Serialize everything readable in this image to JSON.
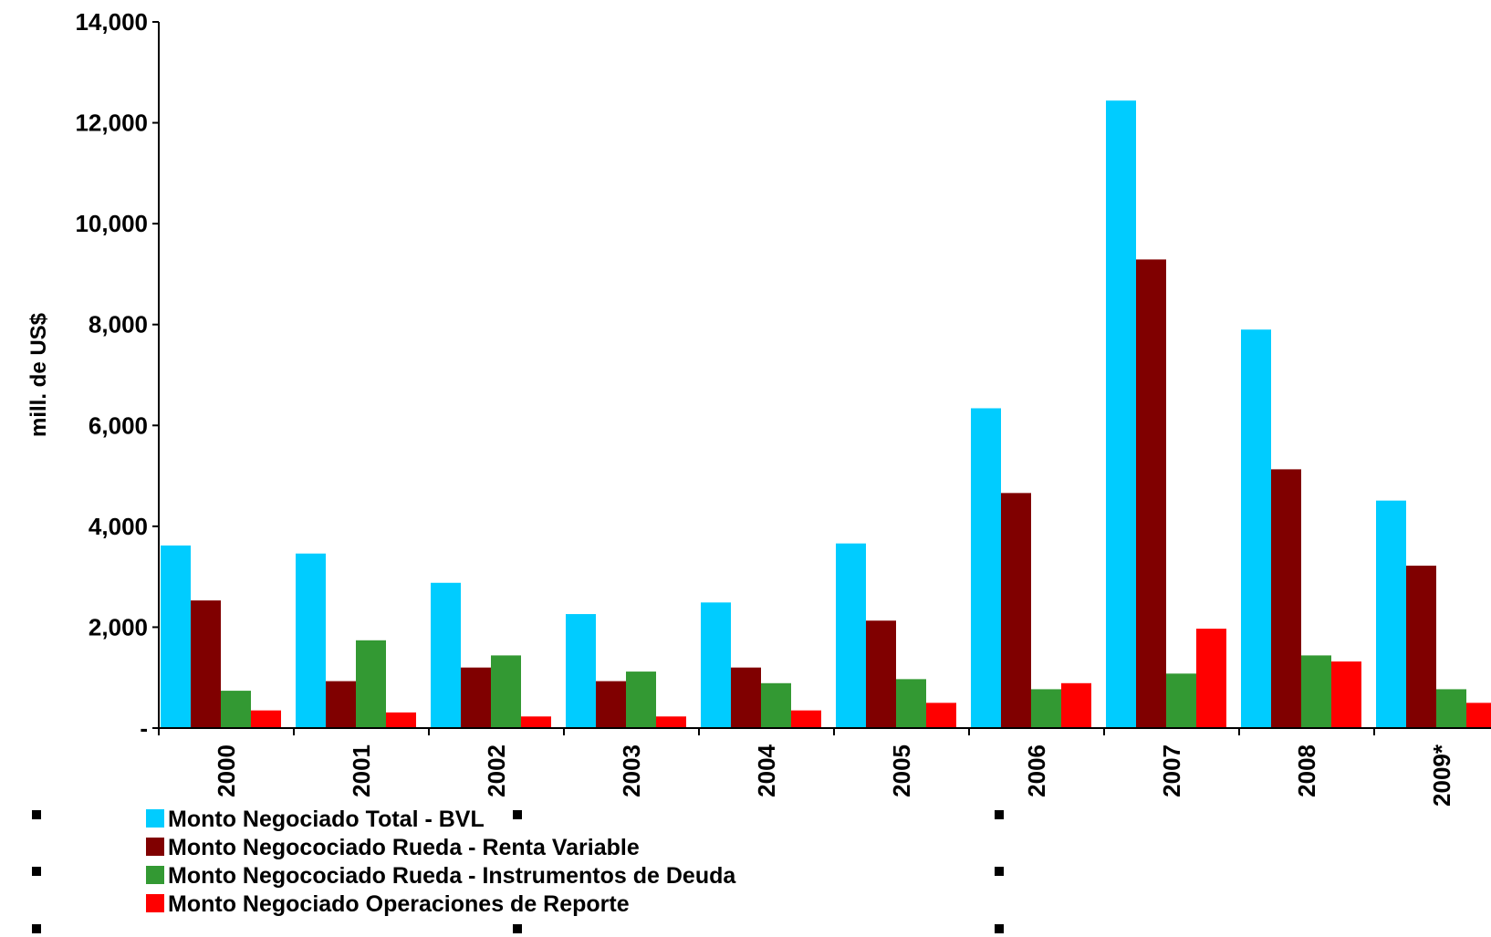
{
  "chart_data": {
    "type": "bar",
    "ylabel": "mill. de US$",
    "ylim": [
      0,
      14000
    ],
    "y_ticks": [
      {
        "value": 0,
        "label": "-"
      },
      {
        "value": 2000,
        "label": "2,000"
      },
      {
        "value": 4000,
        "label": "4,000"
      },
      {
        "value": 6000,
        "label": "6,000"
      },
      {
        "value": 8000,
        "label": "8,000"
      },
      {
        "value": 10000,
        "label": "10,000"
      },
      {
        "value": 12000,
        "label": "12,000"
      },
      {
        "value": 14000,
        "label": "14,000"
      }
    ],
    "categories": [
      "2000",
      "2001",
      "2002",
      "2003",
      "2004",
      "2005",
      "2006",
      "2007",
      "2008",
      "2009*"
    ],
    "grid": false,
    "legend_position": "bottom-left",
    "series": [
      {
        "name": "Monto Negociado Total - BVL",
        "color": "#00CCFF",
        "values": [
          3620,
          3460,
          2880,
          2260,
          2490,
          3660,
          6340,
          12440,
          7900,
          4510
        ]
      },
      {
        "name": "Monto Negocociado Rueda - Renta Variable",
        "color": "#800000",
        "values": [
          2530,
          930,
          1200,
          930,
          1200,
          2130,
          4660,
          9290,
          5130,
          3220
        ]
      },
      {
        "name": "Monto Negocociado Rueda - Instrumentos de Deuda",
        "color": "#339933",
        "values": [
          740,
          1740,
          1440,
          1120,
          890,
          970,
          770,
          1080,
          1440,
          770
        ]
      },
      {
        "name": "Monto Negociado Operaciones de Reporte",
        "color": "#FF0000",
        "values": [
          350,
          310,
          230,
          230,
          350,
          500,
          890,
          1970,
          1320,
          500
        ]
      }
    ]
  }
}
